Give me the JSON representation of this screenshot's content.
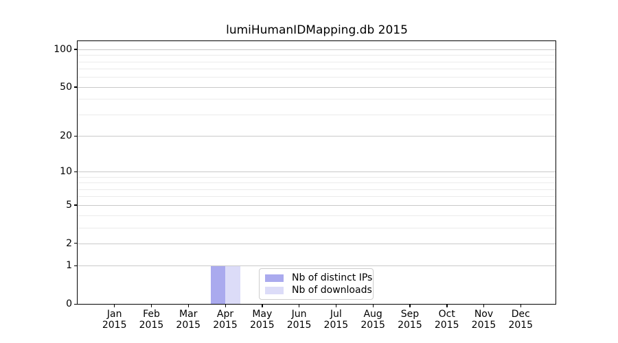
{
  "chart_data": {
    "type": "bar",
    "title": "lumiHumanIDMapping.db 2015",
    "x_months": [
      "Jan",
      "Feb",
      "Mar",
      "Apr",
      "May",
      "Jun",
      "Jul",
      "Aug",
      "Sep",
      "Oct",
      "Nov",
      "Dec"
    ],
    "x_year": "2015",
    "categories": [
      "Jan 2015",
      "Feb 2015",
      "Mar 2015",
      "Apr 2015",
      "May 2015",
      "Jun 2015",
      "Jul 2015",
      "Aug 2015",
      "Sep 2015",
      "Oct 2015",
      "Nov 2015",
      "Dec 2015"
    ],
    "series": [
      {
        "name": "Nb of distinct IPs",
        "color": "#aaaaee",
        "values": [
          0,
          0,
          0,
          1,
          0,
          0,
          0,
          0,
          0,
          0,
          0,
          0
        ]
      },
      {
        "name": "Nb of downloads",
        "color": "#dcdcf8",
        "values": [
          0,
          0,
          0,
          1,
          0,
          0,
          0,
          0,
          0,
          0,
          0,
          0
        ]
      }
    ],
    "y_scale": "log10(value+1)",
    "y_ticks": [
      0,
      1,
      2,
      5,
      10,
      20,
      50,
      100
    ],
    "y_minor_ticks": [
      3,
      4,
      6,
      7,
      8,
      9,
      30,
      40,
      60,
      70,
      80,
      90
    ],
    "ylim": [
      0,
      116
    ],
    "grid": "horizontal",
    "legend_location": "inside-bottom-center"
  }
}
